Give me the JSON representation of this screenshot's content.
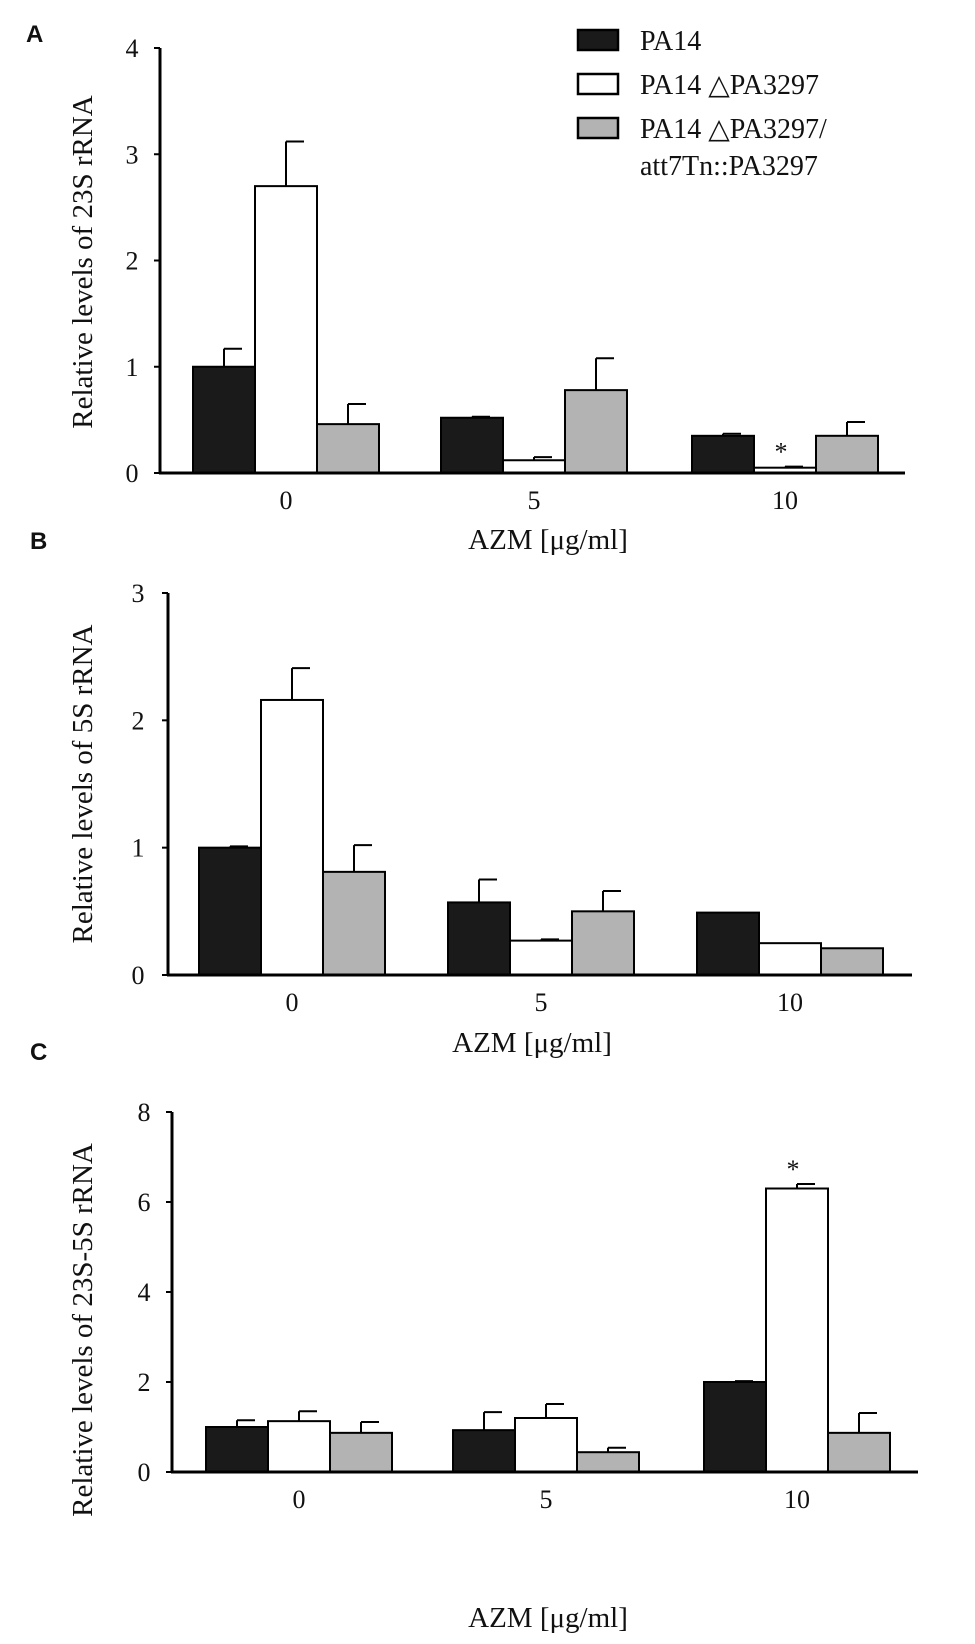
{
  "legend": [
    {
      "name": "PA14",
      "color": "#1a1a1a"
    },
    {
      "name": "PA14 △PA3297",
      "color": "#ffffff"
    },
    {
      "name": "PA14 △PA3297/",
      "name_line2": "att7Tn::PA3297",
      "color": "#b3b3b3"
    }
  ],
  "chart_data": [
    {
      "type": "bar",
      "panel": "A",
      "categories": [
        "0",
        "5",
        "10"
      ],
      "xlabel": "AZM [μg/ml]",
      "ylabel": "Relative levels of 23S rRNA",
      "ylim": [
        0,
        4
      ],
      "yticks": [
        "0",
        "1",
        "2",
        "3",
        "4"
      ],
      "series": [
        {
          "name": "PA14",
          "values": [
            1.0,
            0.52,
            0.35
          ],
          "errors": [
            0.17,
            0.01,
            0.02
          ]
        },
        {
          "name": "PA14 △PA3297",
          "values": [
            2.7,
            0.12,
            0.05
          ],
          "errors": [
            0.42,
            0.03,
            0.01
          ]
        },
        {
          "name": "PA14 △PA3297/att7Tn::PA3297",
          "values": [
            0.46,
            0.78,
            0.35
          ],
          "errors": [
            0.19,
            0.3,
            0.13
          ]
        }
      ],
      "annotations": [
        {
          "text": "*",
          "category": "10",
          "series": 1
        }
      ]
    },
    {
      "type": "bar",
      "panel": "B",
      "categories": [
        "0",
        "5",
        "10"
      ],
      "xlabel": "AZM [μg/ml]",
      "ylabel": "Relative levels of 5S rRNA",
      "ylim": [
        0,
        3
      ],
      "yticks": [
        "0",
        "1",
        "2",
        "3"
      ],
      "series": [
        {
          "name": "PA14",
          "values": [
            1.0,
            0.57,
            0.49
          ],
          "errors": [
            0.01,
            0.18,
            0.0
          ]
        },
        {
          "name": "PA14 △PA3297",
          "values": [
            2.16,
            0.27,
            0.25
          ],
          "errors": [
            0.25,
            0.01,
            0.0
          ]
        },
        {
          "name": "PA14 △PA3297/att7Tn::PA3297",
          "values": [
            0.81,
            0.5,
            0.21
          ],
          "errors": [
            0.21,
            0.16,
            0.0
          ]
        }
      ],
      "annotations": []
    },
    {
      "type": "bar",
      "panel": "C",
      "categories": [
        "0",
        "5",
        "10"
      ],
      "xlabel": "AZM [μg/ml]",
      "ylabel": "Relative levels of 23S-5S rRNA",
      "ylim": [
        0,
        8
      ],
      "yticks": [
        "0",
        "2",
        "4",
        "6",
        "8"
      ],
      "series": [
        {
          "name": "PA14",
          "values": [
            1.0,
            0.93,
            2.0
          ],
          "errors": [
            0.15,
            0.4,
            0.02
          ]
        },
        {
          "name": "PA14 △PA3297",
          "values": [
            1.13,
            1.2,
            6.3
          ],
          "errors": [
            0.22,
            0.31,
            0.1
          ]
        },
        {
          "name": "PA14 △PA3297/att7Tn::PA3297",
          "values": [
            0.87,
            0.44,
            0.87
          ],
          "errors": [
            0.24,
            0.1,
            0.44
          ]
        }
      ],
      "annotations": [
        {
          "text": "*",
          "category": "10",
          "series": 1
        }
      ]
    }
  ]
}
